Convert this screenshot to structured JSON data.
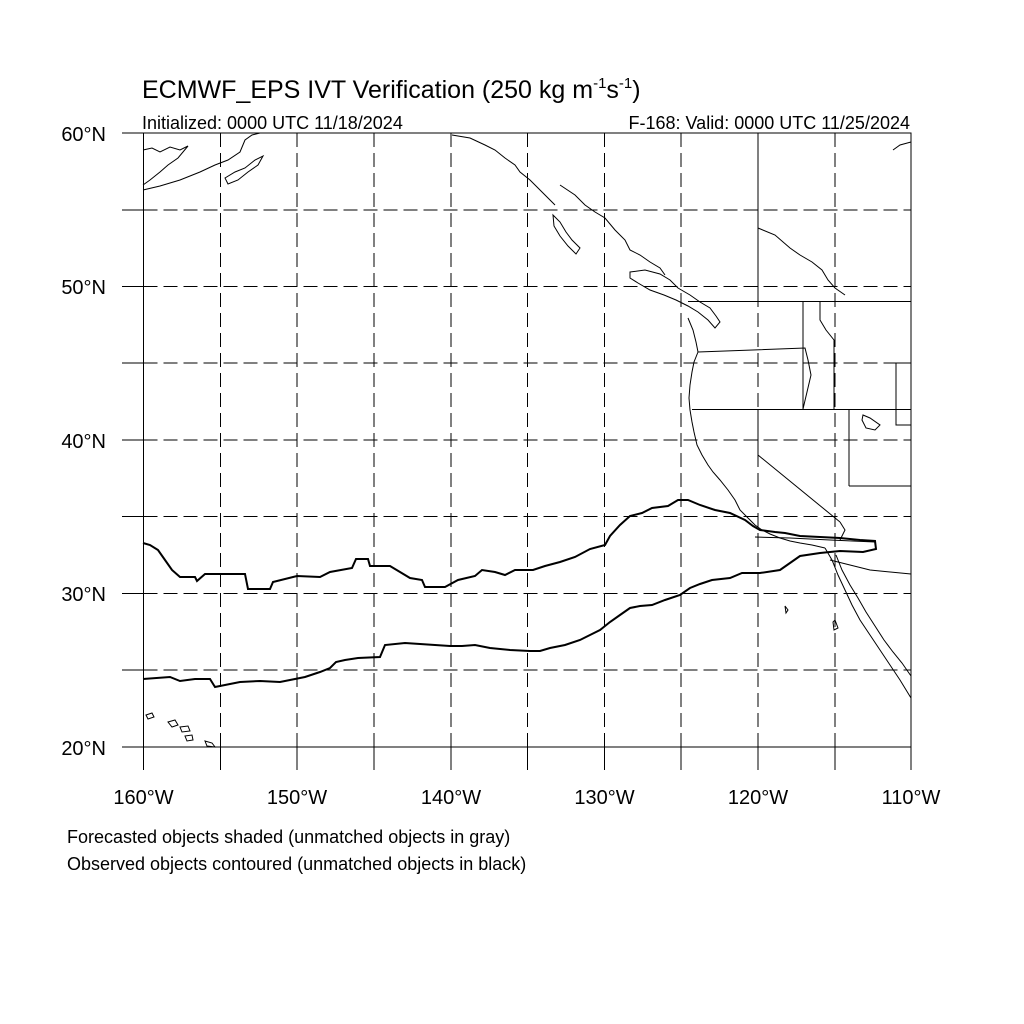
{
  "title": {
    "prefix": "ECMWF_EPS IVT Verification (250 kg m",
    "exp1": "-1",
    "mid": "s",
    "exp2": "-1",
    "suffix": ")"
  },
  "subtitle_left": "Initialized: 0000 UTC 11/18/2024",
  "subtitle_right": "F-168: Valid: 0000 UTC 11/25/2024",
  "y_labels": [
    "60°N",
    "50°N",
    "40°N",
    "30°N",
    "20°N"
  ],
  "x_labels": [
    "160°W",
    "150°W",
    "140°W",
    "130°W",
    "120°W",
    "110°W"
  ],
  "captions": {
    "line1": "Forecasted objects shaded (unmatched objects in gray)",
    "line2": "Observed objects contoured (unmatched objects in black)"
  },
  "map": {
    "lon_range": [
      -160,
      -110
    ],
    "lat_range": [
      20,
      60
    ],
    "grid_interval_deg": 5,
    "grid_style": "dashed",
    "projection": "cylindrical equidistant"
  },
  "colors": {
    "line": "#000000",
    "background": "#ffffff"
  }
}
